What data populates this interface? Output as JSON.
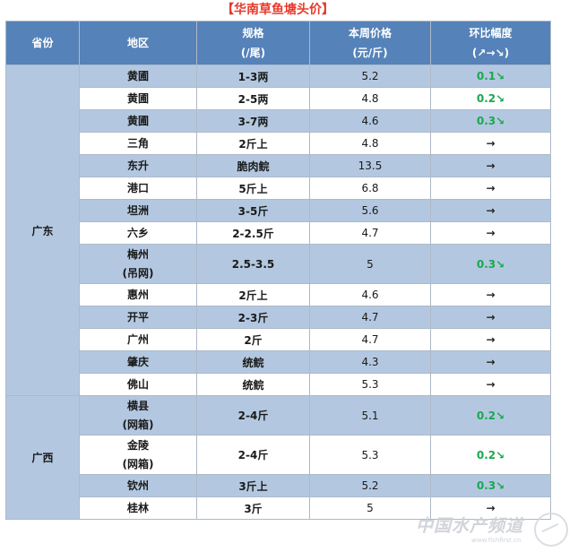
{
  "title": "【华南草鱼塘头价】",
  "headers": {
    "province": "省份",
    "region": "地区",
    "spec": [
      "规格",
      "(/尾)"
    ],
    "price": [
      "本周价格",
      "(元/斤)"
    ],
    "change": [
      "环比幅度",
      "(↗→↘)"
    ]
  },
  "groups": [
    {
      "province": "广东",
      "rows": [
        {
          "region": [
            "黄圃"
          ],
          "spec": "1-3两",
          "price": "5.2",
          "change": "0.1↘"
        },
        {
          "region": [
            "黄圃"
          ],
          "spec": "2-5两",
          "price": "4.8",
          "change": "0.2↘"
        },
        {
          "region": [
            "黄圃"
          ],
          "spec": "3-7两",
          "price": "4.6",
          "change": "0.3↘"
        },
        {
          "region": [
            "三角"
          ],
          "spec": "2斤上",
          "price": "4.8",
          "change": "→"
        },
        {
          "region": [
            "东升"
          ],
          "spec": "脆肉鲩",
          "price": "13.5",
          "change": "→"
        },
        {
          "region": [
            "港口"
          ],
          "spec": "5斤上",
          "price": "6.8",
          "change": "→"
        },
        {
          "region": [
            "坦洲"
          ],
          "spec": "3-5斤",
          "price": "5.6",
          "change": "→"
        },
        {
          "region": [
            "六乡"
          ],
          "spec": "2-2.5斤",
          "price": "4.7",
          "change": "→"
        },
        {
          "region": [
            "梅州",
            "(吊网)"
          ],
          "spec": "2.5-3.5",
          "price": "5",
          "change": "0.3↘"
        },
        {
          "region": [
            "惠州"
          ],
          "spec": "2斤上",
          "price": "4.6",
          "change": "→"
        },
        {
          "region": [
            "开平"
          ],
          "spec": "2-3斤",
          "price": "4.7",
          "change": "→"
        },
        {
          "region": [
            "广州"
          ],
          "spec": "2斤",
          "price": "4.7",
          "change": "→"
        },
        {
          "region": [
            "肇庆"
          ],
          "spec": "统鲩",
          "price": "4.3",
          "change": "→"
        },
        {
          "region": [
            "佛山"
          ],
          "spec": "统鲩",
          "price": "5.3",
          "change": "→"
        }
      ]
    },
    {
      "province": "广西",
      "rows": [
        {
          "region": [
            "横县",
            "(网箱)"
          ],
          "spec": "2-4斤",
          "price": "5.1",
          "change": "0.2↘"
        },
        {
          "region": [
            "金陵",
            "(网箱)"
          ],
          "spec": "2-4斤",
          "price": "5.3",
          "change": "0.2↘"
        },
        {
          "region": [
            "钦州"
          ],
          "spec": "3斤上",
          "price": "5.2",
          "change": "0.3↘"
        },
        {
          "region": [
            "桂林"
          ],
          "spec": "3斤",
          "price": "5",
          "change": "→"
        }
      ]
    }
  ],
  "watermark": {
    "text": "中国水产频道",
    "url": "www.fishfirst.cn"
  },
  "colors": {
    "header_bg": "#5582b9",
    "row_blue": "#b3c8e0",
    "decrease": "#1aa84e",
    "title": "#e8382a"
  }
}
